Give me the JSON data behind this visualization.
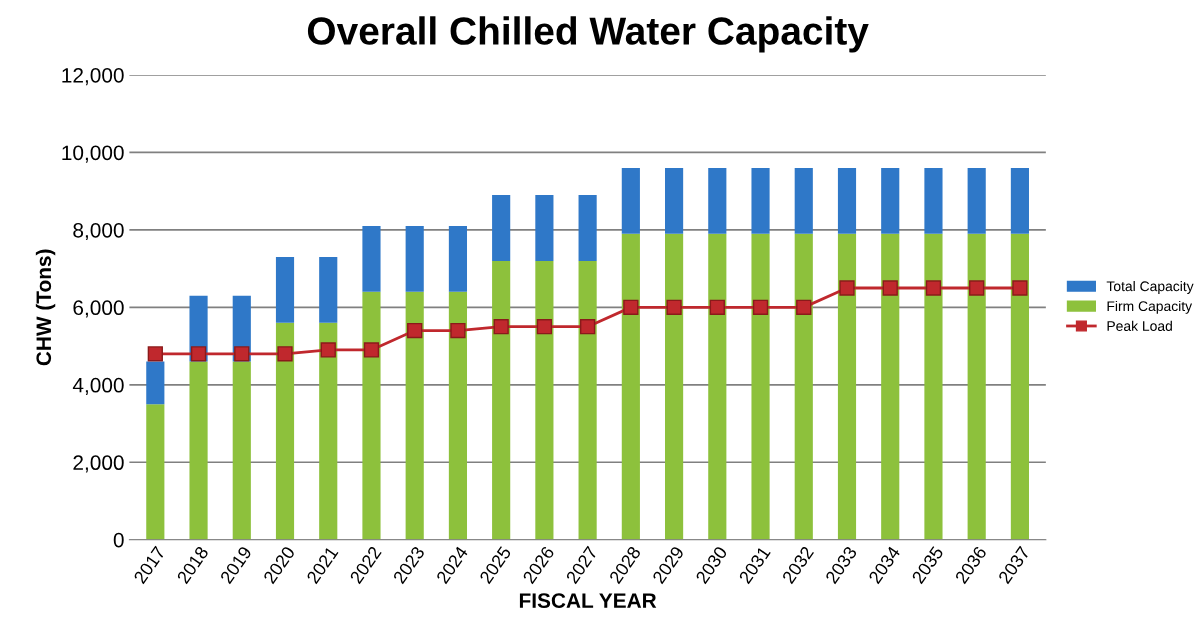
{
  "chart_data": {
    "type": "bar",
    "title": "Overall Chilled Water Capacity",
    "xlabel": "FISCAL YEAR",
    "ylabel": "CHW (Tons)",
    "categories": [
      "2017",
      "2018",
      "2019",
      "2020",
      "2021",
      "2022",
      "2023",
      "2024",
      "2025",
      "2026",
      "2027",
      "2028",
      "2029",
      "2030",
      "2031",
      "2032",
      "2033",
      "2034",
      "2035",
      "2036",
      "2037"
    ],
    "stacked": true,
    "series": [
      {
        "name": "Firm Capacity",
        "color": "#8dc13c",
        "values": [
          3500,
          4600,
          4600,
          5600,
          5600,
          6400,
          6400,
          6400,
          7200,
          7200,
          7200,
          7900,
          7900,
          7900,
          7900,
          7900,
          7900,
          7900,
          7900,
          7900,
          7900
        ]
      },
      {
        "name": "Total Capacity",
        "color": "#2f78c8",
        "values": [
          1100,
          1700,
          1700,
          1700,
          1700,
          1700,
          1700,
          1700,
          1700,
          1700,
          1700,
          1700,
          1700,
          1700,
          1700,
          1700,
          1700,
          1700,
          1700,
          1700,
          1700
        ]
      },
      {
        "name": "Peak Load",
        "type": "line",
        "color": "#c0282d",
        "marker": "square",
        "values": [
          4800,
          4800,
          4800,
          4800,
          4900,
          4900,
          5400,
          5400,
          5500,
          5500,
          5500,
          6000,
          6000,
          6000,
          6000,
          6000,
          6500,
          6500,
          6500,
          6500,
          6500
        ]
      }
    ],
    "ylim": [
      0,
      12000
    ],
    "yticks": [
      {
        "value": 0,
        "label": "0"
      },
      {
        "value": 2000,
        "label": "2,000"
      },
      {
        "value": 4000,
        "label": "4,000"
      },
      {
        "value": 6000,
        "label": "6,000"
      },
      {
        "value": 8000,
        "label": "8,000"
      },
      {
        "value": 10000,
        "label": "10,000"
      },
      {
        "value": 12000,
        "label": "12,000"
      }
    ],
    "grid": "y",
    "legend": "right"
  }
}
